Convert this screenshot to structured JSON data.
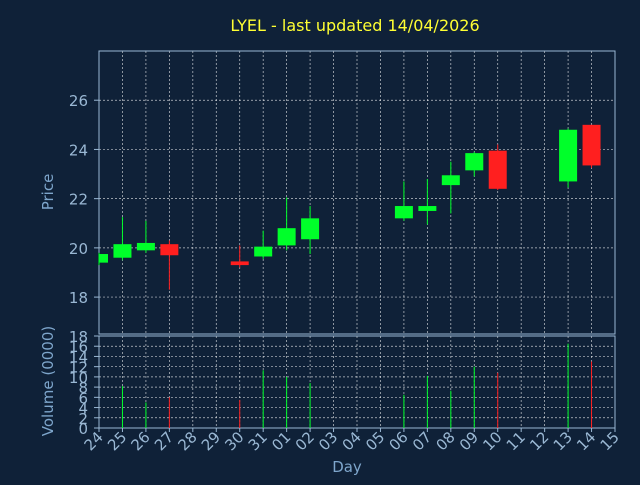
{
  "chart_data": {
    "type": "candlestick",
    "title": "LYEL - last updated 14/04/2026",
    "xlabel": "Day",
    "price_panel": {
      "ylabel": "Price",
      "ylim": [
        16.5,
        28
      ],
      "yticks": [
        18,
        20,
        22,
        24,
        26
      ]
    },
    "volume_panel": {
      "ylabel": "Volume (0000)",
      "ylim": [
        0,
        18
      ],
      "yticks": [
        0,
        2,
        4,
        6,
        8,
        10,
        12,
        14,
        16,
        18
      ]
    },
    "day_ticks": [
      "24",
      "25",
      "26",
      "27",
      "28",
      "29",
      "30",
      "31",
      "01",
      "02",
      "03",
      "04",
      "05",
      "06",
      "07",
      "08",
      "09",
      "10",
      "11",
      "12",
      "13",
      "14",
      "15"
    ],
    "candles": [
      {
        "day": "24",
        "open": 19.4,
        "close": 19.75,
        "high": 19.8,
        "low": 19.3,
        "volume": 0
      },
      {
        "day": "25",
        "open": 19.6,
        "close": 20.15,
        "high": 21.25,
        "low": 19.5,
        "volume": 8.2
      },
      {
        "day": "26",
        "open": 19.9,
        "close": 20.2,
        "high": 21.1,
        "low": 19.8,
        "volume": 5.0
      },
      {
        "day": "27",
        "open": 20.15,
        "close": 19.7,
        "high": 20.3,
        "low": 18.3,
        "volume": 6.0
      },
      {
        "day": "30",
        "open": 19.45,
        "close": 19.3,
        "high": 20.1,
        "low": 19.2,
        "volume": 5.5
      },
      {
        "day": "31",
        "open": 19.65,
        "close": 20.05,
        "high": 20.7,
        "low": 19.55,
        "volume": 11.3
      },
      {
        "day": "01",
        "open": 20.1,
        "close": 20.8,
        "high": 22.05,
        "low": 19.9,
        "volume": 10.0
      },
      {
        "day": "02",
        "open": 20.35,
        "close": 21.2,
        "high": 21.7,
        "low": 19.75,
        "volume": 8.8
      },
      {
        "day": "06",
        "open": 21.2,
        "close": 21.7,
        "high": 22.7,
        "low": 21.1,
        "volume": 6.5
      },
      {
        "day": "07",
        "open": 21.5,
        "close": 21.7,
        "high": 22.8,
        "low": 20.95,
        "volume": 10.2
      },
      {
        "day": "08",
        "open": 22.55,
        "close": 22.95,
        "high": 23.5,
        "low": 21.4,
        "volume": 7.3
      },
      {
        "day": "09",
        "open": 23.15,
        "close": 23.85,
        "high": 23.9,
        "low": 22.9,
        "volume": 12.0
      },
      {
        "day": "10",
        "open": 23.95,
        "close": 22.4,
        "high": 24.2,
        "low": 22.35,
        "volume": 10.8
      },
      {
        "day": "13",
        "open": 22.7,
        "close": 24.8,
        "high": 24.85,
        "low": 22.45,
        "volume": 16.5
      },
      {
        "day": "14",
        "open": 25.0,
        "close": 23.35,
        "high": 25.0,
        "low": 23.25,
        "volume": 13.0
      }
    ]
  },
  "colors": {
    "background": "#0f2138",
    "axis": "#9ab8d4",
    "grid": "#ffffff",
    "title": "#ffff33",
    "label": "#7ea6cc",
    "up": "#00ff2a",
    "down": "#ff1f1f"
  }
}
